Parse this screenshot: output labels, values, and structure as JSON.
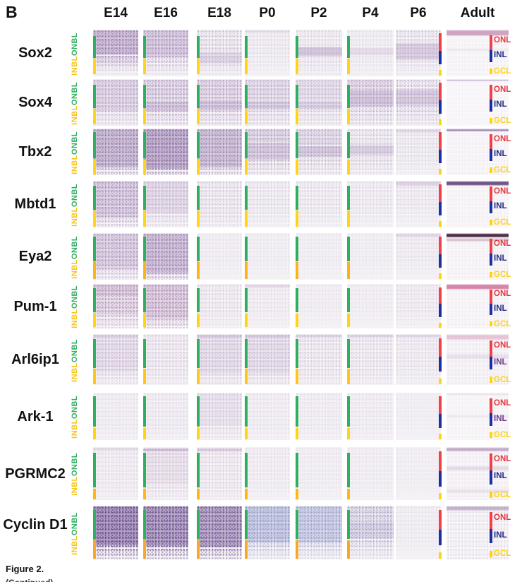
{
  "figure": {
    "panel_label": "B",
    "caption": "Figure 2.",
    "caption_continued": "(Continued)"
  },
  "columns": [
    "E14",
    "E16",
    "E18",
    "P0",
    "P2",
    "P4",
    "P6",
    "Adult"
  ],
  "layer_labels": {
    "embryonic_outer": "ONBL",
    "embryonic_inner": "INBL",
    "adult": [
      "ONL",
      "INL",
      "GCL"
    ]
  },
  "colors": {
    "onbl_green": "#2fae60",
    "inbl_yellow": "#f5c518",
    "onl_red": "#e5383f",
    "inl_blue": "#232c85",
    "gcl_yellow": "#ffd114",
    "bar_red": "#ef4146",
    "bar_blue": "#1e2f9e",
    "bar_yellow": "#ffd414"
  },
  "rows": [
    {
      "gene": "Sox2",
      "hue": "#8a66a4",
      "dark": "#5f3d82",
      "bar": [
        14,
        60,
        96
      ],
      "yellow": "#ffd414",
      "panels": [
        {
          "sp": 0.5,
          "bands": [
            [
              0,
              55,
              0.32
            ],
            [
              55,
              78,
              0.12
            ]
          ],
          "fade": [
            55,
            105
          ]
        },
        {
          "sp": 0.38,
          "bands": [
            [
              0,
              60,
              0.22
            ]
          ],
          "fade": [
            60,
            110
          ]
        },
        {
          "sp": 0.25,
          "bands": [
            [
              48,
              75,
              0.15
            ]
          ],
          "fade": [
            65,
            115
          ]
        },
        {
          "sp": 0.12,
          "bands": [
            [
              0,
              8,
              0.1
            ]
          ],
          "fade": [
            55,
            115
          ]
        },
        {
          "sp": 0.15,
          "bands": [
            [
              36,
              58,
              0.28
            ]
          ],
          "fade": [
            70,
            125
          ]
        },
        {
          "sp": 0.1,
          "bands": [
            [
              38,
              56,
              0.12
            ]
          ],
          "fade": [
            65,
            120
          ]
        },
        {
          "sp": 0.2,
          "bands": [
            [
              28,
              66,
              0.22
            ]
          ],
          "fade": [
            60,
            115
          ]
        },
        {
          "sp": 0.04,
          "bands": [
            [
              0,
              14,
              0.75,
              "#c189ae"
            ],
            [
              40,
              47,
              0.1
            ]
          ],
          "bg": "#f9f7f9"
        }
      ]
    },
    {
      "gene": "Sox4",
      "hue": "#8a66a4",
      "dark": "#5f3d82",
      "bar": [
        12,
        62,
        97
      ],
      "yellow": "#ffd414",
      "panels": [
        {
          "sp": 0.3,
          "bands": [
            [
              0,
              70,
              0.15
            ]
          ],
          "fade": [
            70,
            125
          ]
        },
        {
          "sp": 0.35,
          "bands": [
            [
              46,
              70,
              0.25
            ],
            [
              0,
              46,
              0.12
            ]
          ],
          "fade": [
            75,
            130
          ]
        },
        {
          "sp": 0.33,
          "bands": [
            [
              44,
              68,
              0.25
            ],
            [
              0,
              44,
              0.12
            ]
          ],
          "fade": [
            75,
            130
          ]
        },
        {
          "sp": 0.28,
          "bands": [
            [
              46,
              66,
              0.22
            ],
            [
              0,
              46,
              0.1
            ]
          ],
          "fade": [
            75,
            130
          ]
        },
        {
          "sp": 0.22,
          "bands": [
            [
              46,
              66,
              0.2
            ],
            [
              0,
              46,
              0.1
            ]
          ],
          "fade": [
            75,
            130
          ]
        },
        {
          "sp": 0.3,
          "bands": [
            [
              22,
              60,
              0.26
            ],
            [
              0,
              22,
              0.12
            ]
          ],
          "fade": [
            72,
            128
          ]
        },
        {
          "sp": 0.28,
          "bands": [
            [
              22,
              58,
              0.22
            ]
          ],
          "fade": [
            68,
            122
          ]
        },
        {
          "sp": 0.03,
          "bands": [
            [
              0,
              5,
              0.55,
              "#9d7cb2"
            ]
          ],
          "bg": "#faf8fa"
        }
      ]
    },
    {
      "gene": "Tbx2",
      "hue": "#7d5a99",
      "dark": "#563a75",
      "bar": [
        8,
        64,
        99
      ],
      "yellow": "#ffd414",
      "panels": [
        {
          "sp": 0.45,
          "bands": [
            [
              0,
              85,
              0.3
            ]
          ],
          "fade": [
            78,
            135
          ]
        },
        {
          "sp": 0.55,
          "bands": [
            [
              0,
              88,
              0.38
            ]
          ],
          "fade": [
            82,
            140
          ]
        },
        {
          "sp": 0.4,
          "bands": [
            [
              0,
              85,
              0.26
            ]
          ],
          "fade": [
            78,
            135
          ]
        },
        {
          "sp": 0.3,
          "bands": [
            [
              30,
              68,
              0.2
            ],
            [
              0,
              30,
              0.12
            ]
          ],
          "fade": [
            72,
            128
          ]
        },
        {
          "sp": 0.25,
          "bands": [
            [
              36,
              62,
              0.22
            ],
            [
              0,
              36,
              0.1
            ]
          ],
          "fade": [
            72,
            128
          ]
        },
        {
          "sp": 0.2,
          "bands": [
            [
              34,
              58,
              0.18
            ]
          ],
          "fade": [
            70,
            126
          ]
        },
        {
          "sp": 0.13,
          "bands": [
            [
              0,
              10,
              0.12
            ]
          ],
          "fade": [
            62,
            118
          ]
        },
        {
          "sp": 0.04,
          "bands": [
            [
              0,
              7,
              0.7,
              "#7b5893"
            ]
          ],
          "bg": "#f9f7f9"
        }
      ]
    },
    {
      "gene": "Mbtd1",
      "hue": "#8a66a4",
      "dark": "#5f3d82",
      "bar": [
        10,
        62,
        98
      ],
      "yellow": "#ffd414",
      "panels": [
        {
          "sp": 0.4,
          "bands": [
            [
              0,
              80,
              0.2
            ]
          ],
          "fade": [
            72,
            128
          ]
        },
        {
          "sp": 0.24,
          "bands": [
            [
              0,
              70,
              0.12
            ]
          ],
          "fade": [
            70,
            126
          ]
        },
        {
          "sp": 0.2,
          "fade": [
            68,
            124
          ]
        },
        {
          "sp": 0.14,
          "fade": [
            62,
            118
          ]
        },
        {
          "sp": 0.14,
          "fade": [
            62,
            118
          ]
        },
        {
          "sp": 0.12,
          "fade": [
            62,
            118
          ]
        },
        {
          "sp": 0.12,
          "bands": [
            [
              0,
              12,
              0.18
            ]
          ],
          "fade": [
            55,
            112
          ]
        },
        {
          "sp": 0.04,
          "bands": [
            [
              0,
              11,
              0.85,
              "#5d3a72"
            ]
          ],
          "bg": "#f9f7f9"
        }
      ]
    },
    {
      "gene": "Eya2",
      "hue": "#8a66a4",
      "dark": "#5f3d82",
      "bar": [
        8,
        60,
        98
      ],
      "yellow": "#f9b41c",
      "panels": [
        {
          "sp": 0.36,
          "bands": [
            [
              0,
              80,
              0.18
            ]
          ],
          "fade": [
            70,
            126
          ]
        },
        {
          "sp": 0.46,
          "bands": [
            [
              0,
              88,
              0.3
            ]
          ],
          "fade": [
            80,
            136
          ]
        },
        {
          "sp": 0.08,
          "fade": [
            60,
            116
          ]
        },
        {
          "sp": 0.07,
          "fade": [
            60,
            116
          ]
        },
        {
          "sp": 0.07,
          "fade": [
            60,
            116
          ]
        },
        {
          "sp": 0.07,
          "fade": [
            60,
            116
          ]
        },
        {
          "sp": 0.1,
          "bands": [
            [
              0,
              10,
              0.15
            ]
          ],
          "fade": [
            56,
            112
          ]
        },
        {
          "sp": 0.05,
          "bands": [
            [
              0,
              10,
              0.95,
              "#451f3d"
            ],
            [
              10,
              19,
              0.3,
              "#8c5b80"
            ]
          ],
          "bg": "#f9f7f9"
        }
      ]
    },
    {
      "gene": "Pum-1",
      "hue": "#96629c",
      "dark": "#6b3f78",
      "bar": [
        10,
        64,
        97
      ],
      "yellow": "#ffd414",
      "panels": [
        {
          "sp": 0.38,
          "bands": [
            [
              0,
              30,
              0.22
            ],
            [
              30,
              70,
              0.12
            ]
          ],
          "fade": [
            68,
            124
          ]
        },
        {
          "sp": 0.4,
          "bands": [
            [
              0,
              80,
              0.2
            ]
          ],
          "fade": [
            76,
            132
          ]
        },
        {
          "sp": 0.15,
          "fade": [
            62,
            118
          ]
        },
        {
          "sp": 0.1,
          "bands": [
            [
              0,
              10,
              0.14
            ]
          ],
          "fade": [
            58,
            114
          ]
        },
        {
          "sp": 0.08,
          "fade": [
            56,
            112
          ]
        },
        {
          "sp": 0.08,
          "fade": [
            56,
            112
          ]
        },
        {
          "sp": 0.12,
          "fade": [
            58,
            114
          ]
        },
        {
          "sp": 0.05,
          "bands": [
            [
              0,
              13,
              0.75,
              "#cb5f8f"
            ]
          ],
          "bg": "#f9f7f9"
        }
      ]
    },
    {
      "gene": "Arl6ip1",
      "hue": "#9a74ac",
      "dark": "#6f4a86",
      "bar": [
        10,
        66,
        98
      ],
      "yellow": "#ffc714",
      "inl": "#6d3c8e",
      "panels": [
        {
          "sp": 0.25,
          "bands": [
            [
              0,
              10,
              0.2
            ],
            [
              10,
              75,
              0.1
            ]
          ],
          "fade": [
            70,
            126
          ]
        },
        {
          "sp": 0.2,
          "fade": [
            68,
            124
          ]
        },
        {
          "sp": 0.25,
          "bands": [
            [
              0,
              10,
              0.25
            ],
            [
              10,
              78,
              0.1
            ]
          ],
          "fade": [
            75,
            130
          ]
        },
        {
          "sp": 0.25,
          "bands": [
            [
              0,
              10,
              0.25
            ],
            [
              10,
              78,
              0.1
            ]
          ],
          "fade": [
            75,
            130
          ]
        },
        {
          "sp": 0.2,
          "bands": [
            [
              0,
              8,
              0.2
            ]
          ],
          "fade": [
            70,
            126
          ]
        },
        {
          "sp": 0.18,
          "bands": [
            [
              0,
              8,
              0.2
            ]
          ],
          "fade": [
            70,
            126
          ]
        },
        {
          "sp": 0.14,
          "bands": [
            [
              0,
              8,
              0.18
            ]
          ],
          "fade": [
            66,
            122
          ]
        },
        {
          "sp": 0.08,
          "bands": [
            [
              0,
              12,
              0.5,
              "#d29ab9"
            ],
            [
              38,
              50,
              0.14
            ]
          ],
          "bg": "#f8f6f8"
        }
      ]
    },
    {
      "gene": "Ark-1",
      "hue": "#9a74ac",
      "dark": "#6f4a86",
      "bar": [
        8,
        72,
        99
      ],
      "yellow": "#ffd414",
      "inl": "#6d3c8e",
      "panels": [
        {
          "sp": 0.1,
          "fade": [
            70,
            126
          ]
        },
        {
          "sp": 0.12,
          "fade": [
            70,
            126
          ]
        },
        {
          "sp": 0.18,
          "bands": [
            [
              0,
              70,
              0.08
            ]
          ],
          "fade": [
            74,
            130
          ]
        },
        {
          "sp": 0.1,
          "fade": [
            70,
            126
          ]
        },
        {
          "sp": 0.1,
          "fade": [
            70,
            126
          ]
        },
        {
          "sp": 0.1,
          "fade": [
            70,
            126
          ]
        },
        {
          "sp": 0.06,
          "fade": [
            60,
            116
          ]
        },
        {
          "sp": 0.04,
          "bands": [
            [
              0,
              6,
              0.3,
              "#cfb3c4"
            ],
            [
              45,
              55,
              0.08
            ]
          ],
          "bg": "#f9f7f9"
        }
      ]
    },
    {
      "gene": "PGRMC2",
      "hue": "#9a6fa4",
      "dark": "#6f477c",
      "bar": [
        10,
        76,
        99
      ],
      "yellow": "#fdb813",
      "panels": [
        {
          "sp": 0.12,
          "bands": [
            [
              0,
              8,
              0.14
            ]
          ],
          "fade": [
            70,
            126
          ]
        },
        {
          "sp": 0.18,
          "bands": [
            [
              2,
              9,
              0.45
            ],
            [
              9,
              70,
              0.08
            ]
          ],
          "fade": [
            72,
            128
          ]
        },
        {
          "sp": 0.16,
          "bands": [
            [
              2,
              9,
              0.32
            ]
          ],
          "fade": [
            72,
            128
          ]
        },
        {
          "sp": 0.1,
          "fade": [
            66,
            122
          ]
        },
        {
          "sp": 0.08,
          "fade": [
            66,
            122
          ]
        },
        {
          "sp": 0.08,
          "fade": [
            66,
            122
          ]
        },
        {
          "sp": 0.06,
          "fade": [
            60,
            116
          ]
        },
        {
          "sp": 0.06,
          "bands": [
            [
              0,
              9,
              0.55,
              "#9a6fa4"
            ],
            [
              35,
              45,
              0.22,
              "#a87fb0"
            ],
            [
              78,
              88,
              0.14,
              "#a87fb0"
            ]
          ],
          "bg": "#f8f6f8"
        }
      ]
    },
    {
      "gene": "Cyclin D1",
      "hue": "#6d4f92",
      "dark": "#4a3268",
      "bar": [
        8,
        62,
        99
      ],
      "yellow": "#f9a825",
      "panels": [
        {
          "sp": 0.8,
          "bands": [
            [
              0,
              75,
              0.5
            ]
          ],
          "fade": [
            74,
            112
          ]
        },
        {
          "sp": 0.75,
          "bands": [
            [
              0,
              76,
              0.45
            ]
          ],
          "fade": [
            76,
            114
          ]
        },
        {
          "sp": 0.68,
          "bands": [
            [
              0,
              78,
              0.4
            ]
          ],
          "fade": [
            78,
            116
          ]
        },
        {
          "hue": "#7f8ac2",
          "dark": "#5b67a8",
          "sp": 0.5,
          "bands": [
            [
              0,
              70,
              0.32
            ]
          ],
          "fade": [
            70,
            112
          ]
        },
        {
          "hue": "#7f8ac2",
          "dark": "#5b67a8",
          "sp": 0.45,
          "bands": [
            [
              0,
              70,
              0.28
            ]
          ],
          "fade": [
            70,
            112
          ]
        },
        {
          "hue": "#8a7fb5",
          "dark": "#64578f",
          "sp": 0.4,
          "bands": [
            [
              28,
              62,
              0.2
            ],
            [
              0,
              28,
              0.1
            ]
          ],
          "fade": [
            66,
            112
          ]
        },
        {
          "sp": 0.07,
          "fade": [
            60,
            116
          ]
        },
        {
          "sp": 0.1,
          "bands": [
            [
              0,
              10,
              0.45,
              "#8d6ba0"
            ]
          ],
          "bg": "#f8f6f8"
        }
      ]
    }
  ]
}
